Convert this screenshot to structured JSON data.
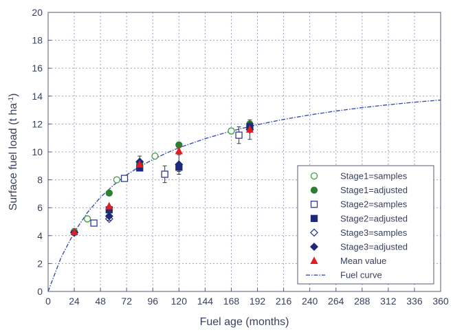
{
  "chart_data": {
    "type": "scatter",
    "title": "",
    "xlabel": "Fuel age (months)",
    "ylabel": "Surface fuel load (t ha",
    "ylabel_sup": "-1",
    "ylabel_close": ")",
    "xlim": [
      0,
      360
    ],
    "ylim": [
      0,
      20
    ],
    "xticks": [
      0,
      24,
      48,
      72,
      96,
      120,
      144,
      168,
      192,
      216,
      240,
      264,
      288,
      312,
      336,
      360
    ],
    "yticks": [
      0,
      2,
      4,
      6,
      8,
      10,
      12,
      14,
      16,
      18,
      20
    ],
    "grid": true,
    "legend_position": "bottom-right",
    "series": [
      {
        "name": "Stage1=samples",
        "marker": "circle-open",
        "color": "#3c9a3c",
        "points": [
          [
            24,
            4.3
          ],
          [
            36,
            5.2
          ],
          [
            63,
            8.0
          ],
          [
            98,
            9.7
          ],
          [
            168,
            11.5
          ]
        ],
        "errors": [
          0.15,
          0.1,
          0.15,
          0.1,
          0.2
        ]
      },
      {
        "name": "Stage1=adjusted",
        "marker": "circle-filled",
        "color": "#2e7d32",
        "points": [
          [
            56,
            7.05
          ],
          [
            84,
            9.2
          ],
          [
            120,
            10.5
          ],
          [
            185,
            12.0
          ]
        ],
        "errors": [
          0.1,
          0.15,
          0.15,
          0.2
        ]
      },
      {
        "name": "Stage2=samples",
        "marker": "square-open",
        "color": "#2b3a9a",
        "points": [
          [
            42,
            4.9
          ],
          [
            70,
            8.1
          ],
          [
            107,
            8.4
          ],
          [
            175,
            11.2
          ]
        ],
        "errors": [
          0.1,
          0.2,
          0.6,
          0.6
        ]
      },
      {
        "name": "Stage2=adjusted",
        "marker": "square-filled",
        "color": "#1c2a7a",
        "points": [
          [
            56,
            5.85
          ],
          [
            84,
            8.85
          ],
          [
            120,
            8.9
          ],
          [
            185,
            11.8
          ]
        ],
        "errors": [
          0.15,
          0.2,
          0.3,
          0.3
        ]
      },
      {
        "name": "Stage3=samples",
        "marker": "diamond-open",
        "color": "#2b3a9a",
        "points": [
          [
            24,
            4.2
          ],
          [
            56,
            5.2
          ]
        ],
        "errors": [
          0.1,
          0.15
        ]
      },
      {
        "name": "Stage3=adjusted",
        "marker": "diamond-filled",
        "color": "#1c2a7a",
        "points": [
          [
            24,
            4.25
          ],
          [
            56,
            5.4
          ],
          [
            84,
            9.3
          ],
          [
            120,
            9.1
          ],
          [
            185,
            11.6
          ]
        ],
        "errors": [
          0.1,
          0.3,
          0.4,
          0.7,
          0.7
        ]
      },
      {
        "name": "Mean value",
        "marker": "triangle-filled",
        "color": "#e02020",
        "points": [
          [
            24,
            4.25
          ],
          [
            56,
            6.1
          ],
          [
            84,
            9.1
          ],
          [
            120,
            10.05
          ],
          [
            185,
            11.6
          ]
        ],
        "errors": [
          0,
          0,
          0,
          0,
          0
        ]
      }
    ],
    "curve": {
      "name": "Fuel curve",
      "style": "dash-dot",
      "color": "#3a4db0",
      "x": [
        0,
        12,
        24,
        36,
        48,
        60,
        72,
        84,
        96,
        108,
        120,
        144,
        168,
        192,
        216,
        240,
        264,
        288,
        312,
        336,
        360
      ],
      "y": [
        0,
        2.45,
        4.25,
        5.65,
        6.75,
        7.62,
        8.35,
        8.95,
        9.45,
        9.9,
        10.3,
        10.95,
        11.5,
        11.95,
        12.33,
        12.65,
        12.93,
        13.17,
        13.38,
        13.56,
        13.72
      ]
    }
  }
}
